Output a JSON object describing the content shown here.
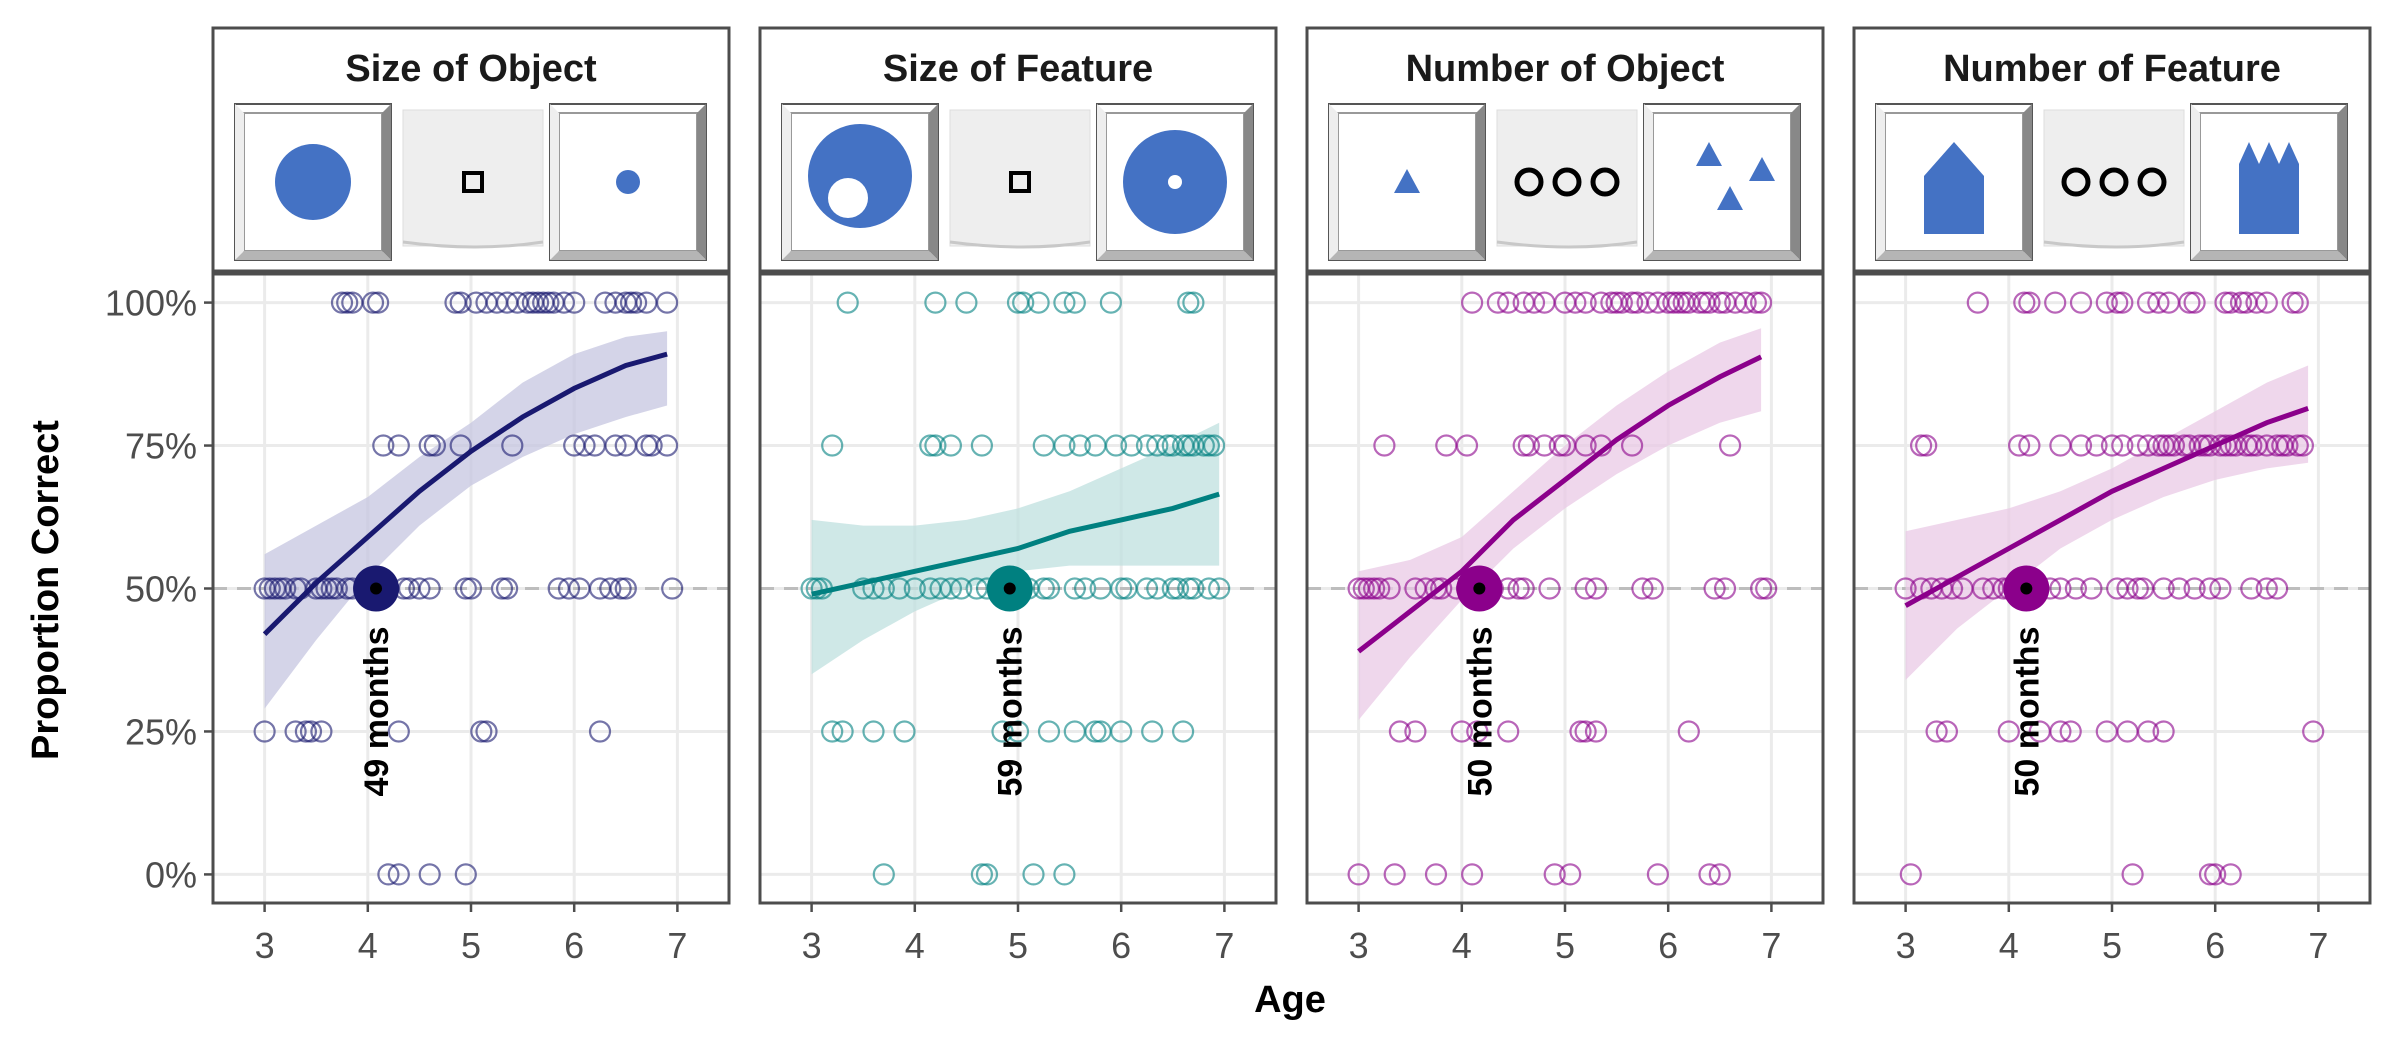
{
  "figure": {
    "xlabel": "Age",
    "ylabel": "Proportion Correct",
    "y_tick_labels": [
      "0%",
      "25%",
      "50%",
      "75%",
      "100%"
    ],
    "x_tick_labels": [
      "3",
      "4",
      "5",
      "6",
      "7"
    ]
  },
  "chart_data": [
    {
      "type": "scatter",
      "title": "Size of Object",
      "color": "#191970",
      "band_color": "#c5c6e0",
      "stimulus_icons": [
        "large-circle-icon",
        "small-square-icon",
        "small-circle-icon"
      ],
      "xlim": [
        2.5,
        7.5
      ],
      "ylim": [
        -0.05,
        1.05
      ],
      "x_ticks": [
        3,
        4,
        5,
        6,
        7
      ],
      "y_ticks": [
        0,
        0.25,
        0.5,
        0.75,
        1.0
      ],
      "chance_line": 0.5,
      "fit": {
        "x": [
          3.0,
          3.5,
          4.0,
          4.5,
          5.0,
          5.5,
          6.0,
          6.5,
          6.9
        ],
        "y": [
          0.42,
          0.51,
          0.59,
          0.67,
          0.74,
          0.8,
          0.85,
          0.89,
          0.91
        ],
        "lower": [
          0.29,
          0.41,
          0.52,
          0.61,
          0.68,
          0.73,
          0.77,
          0.8,
          0.82
        ],
        "upper": [
          0.56,
          0.61,
          0.66,
          0.73,
          0.79,
          0.86,
          0.91,
          0.94,
          0.95
        ]
      },
      "threshold": {
        "x": 4.08,
        "y": 0.5,
        "label": "49 months"
      },
      "points": {
        "x": [
          3.75,
          3.8,
          3.85,
          4.05,
          4.1,
          4.85,
          4.9,
          5.05,
          5.15,
          5.25,
          5.35,
          5.45,
          5.55,
          5.6,
          5.65,
          5.7,
          5.75,
          5.8,
          5.9,
          6.0,
          6.3,
          6.4,
          6.5,
          6.55,
          6.6,
          6.7,
          6.9,
          4.15,
          4.3,
          4.6,
          4.65,
          4.9,
          5.4,
          6.0,
          6.1,
          6.2,
          6.4,
          6.5,
          6.7,
          6.75,
          6.9,
          3.0,
          3.05,
          3.1,
          3.15,
          3.2,
          3.3,
          3.35,
          3.5,
          3.55,
          3.6,
          3.65,
          3.7,
          3.8,
          3.85,
          4.2,
          4.35,
          4.4,
          4.5,
          4.6,
          4.95,
          5.0,
          5.3,
          5.35,
          5.85,
          5.95,
          6.05,
          6.25,
          6.35,
          6.45,
          6.5,
          6.95,
          3.0,
          3.3,
          3.4,
          3.45,
          3.55,
          4.3,
          5.1,
          5.15,
          6.25,
          4.2,
          4.3,
          4.6,
          4.95
        ],
        "y": [
          1,
          1,
          1,
          1,
          1,
          1,
          1,
          1,
          1,
          1,
          1,
          1,
          1,
          1,
          1,
          1,
          1,
          1,
          1,
          1,
          1,
          1,
          1,
          1,
          1,
          1,
          1,
          0.75,
          0.75,
          0.75,
          0.75,
          0.75,
          0.75,
          0.75,
          0.75,
          0.75,
          0.75,
          0.75,
          0.75,
          0.75,
          0.75,
          0.5,
          0.5,
          0.5,
          0.5,
          0.5,
          0.5,
          0.5,
          0.5,
          0.5,
          0.5,
          0.5,
          0.5,
          0.5,
          0.5,
          0.5,
          0.5,
          0.5,
          0.5,
          0.5,
          0.5,
          0.5,
          0.5,
          0.5,
          0.5,
          0.5,
          0.5,
          0.5,
          0.5,
          0.5,
          0.5,
          0.5,
          0.25,
          0.25,
          0.25,
          0.25,
          0.25,
          0.25,
          0.25,
          0.25,
          0.25,
          0,
          0,
          0,
          0
        ]
      }
    },
    {
      "type": "scatter",
      "title": "Size of Feature",
      "color": "#008080",
      "band_color": "#bfe0df",
      "stimulus_icons": [
        "circle-with-hole-icon",
        "small-square-icon",
        "circle-with-dot-icon"
      ],
      "xlim": [
        2.5,
        7.5
      ],
      "ylim": [
        -0.05,
        1.05
      ],
      "x_ticks": [
        3,
        4,
        5,
        6,
        7
      ],
      "y_ticks": [
        0,
        0.25,
        0.5,
        0.75,
        1.0
      ],
      "chance_line": 0.5,
      "fit": {
        "x": [
          3.0,
          3.5,
          4.0,
          4.5,
          5.0,
          5.5,
          6.0,
          6.5,
          6.95
        ],
        "y": [
          0.49,
          0.51,
          0.53,
          0.55,
          0.57,
          0.6,
          0.62,
          0.64,
          0.665
        ],
        "lower": [
          0.35,
          0.41,
          0.46,
          0.5,
          0.53,
          0.54,
          0.54,
          0.54,
          0.54
        ],
        "upper": [
          0.62,
          0.61,
          0.61,
          0.62,
          0.64,
          0.67,
          0.71,
          0.75,
          0.79
        ]
      },
      "threshold": {
        "x": 4.92,
        "y": 0.5,
        "label": "59 months"
      },
      "points": {
        "x": [
          3.35,
          4.2,
          4.5,
          5.0,
          5.05,
          5.2,
          5.45,
          5.55,
          5.9,
          6.65,
          6.7,
          3.2,
          4.15,
          4.2,
          4.35,
          4.65,
          5.25,
          5.45,
          5.6,
          5.75,
          5.95,
          6.1,
          6.25,
          6.35,
          6.45,
          6.5,
          6.6,
          6.65,
          6.7,
          6.8,
          6.85,
          6.9,
          3.0,
          3.05,
          3.1,
          3.5,
          3.6,
          3.7,
          3.85,
          4.0,
          4.15,
          4.25,
          4.35,
          4.45,
          4.6,
          4.7,
          4.9,
          5.1,
          5.25,
          5.3,
          5.55,
          5.65,
          5.8,
          6.0,
          6.05,
          6.25,
          6.35,
          6.5,
          6.55,
          6.65,
          6.7,
          6.85,
          6.95,
          3.2,
          3.3,
          3.6,
          3.9,
          4.85,
          5.0,
          5.3,
          5.55,
          5.75,
          5.8,
          6.0,
          6.3,
          6.6,
          3.7,
          4.65,
          4.7,
          5.15,
          5.45
        ],
        "y": [
          1,
          1,
          1,
          1,
          1,
          1,
          1,
          1,
          1,
          1,
          1,
          0.75,
          0.75,
          0.75,
          0.75,
          0.75,
          0.75,
          0.75,
          0.75,
          0.75,
          0.75,
          0.75,
          0.75,
          0.75,
          0.75,
          0.75,
          0.75,
          0.75,
          0.75,
          0.75,
          0.75,
          0.75,
          0.5,
          0.5,
          0.5,
          0.5,
          0.5,
          0.5,
          0.5,
          0.5,
          0.5,
          0.5,
          0.5,
          0.5,
          0.5,
          0.5,
          0.5,
          0.5,
          0.5,
          0.5,
          0.5,
          0.5,
          0.5,
          0.5,
          0.5,
          0.5,
          0.5,
          0.5,
          0.5,
          0.5,
          0.5,
          0.5,
          0.5,
          0.25,
          0.25,
          0.25,
          0.25,
          0.25,
          0.25,
          0.25,
          0.25,
          0.25,
          0.25,
          0.25,
          0.25,
          0.25,
          0,
          0,
          0,
          0,
          0
        ]
      }
    },
    {
      "type": "scatter",
      "title": "Number of Object",
      "color": "#8b008b",
      "band_color": "#e9c9e6",
      "stimulus_icons": [
        "single-triangle-icon",
        "three-rings-icon",
        "three-triangles-icon"
      ],
      "xlim": [
        2.5,
        7.5
      ],
      "ylim": [
        -0.05,
        1.05
      ],
      "x_ticks": [
        3,
        4,
        5,
        6,
        7
      ],
      "y_ticks": [
        0,
        0.25,
        0.5,
        0.75,
        1.0
      ],
      "chance_line": 0.5,
      "fit": {
        "x": [
          3.0,
          3.5,
          4.0,
          4.5,
          5.0,
          5.5,
          6.0,
          6.5,
          6.9
        ],
        "y": [
          0.39,
          0.46,
          0.53,
          0.62,
          0.69,
          0.76,
          0.82,
          0.87,
          0.905
        ],
        "lower": [
          0.27,
          0.38,
          0.48,
          0.57,
          0.64,
          0.7,
          0.75,
          0.79,
          0.81
        ],
        "upper": [
          0.53,
          0.55,
          0.59,
          0.67,
          0.75,
          0.82,
          0.88,
          0.93,
          0.955
        ]
      },
      "threshold": {
        "x": 4.17,
        "y": 0.5,
        "label": "50 months"
      },
      "points": {
        "x": [
          4.1,
          4.35,
          4.45,
          4.6,
          4.7,
          4.8,
          5.0,
          5.1,
          5.2,
          5.35,
          5.45,
          5.5,
          5.55,
          5.65,
          5.7,
          5.8,
          5.9,
          6.0,
          6.05,
          6.1,
          6.15,
          6.2,
          6.3,
          6.35,
          6.4,
          6.5,
          6.55,
          6.65,
          6.75,
          6.85,
          6.9,
          3.25,
          3.85,
          4.05,
          4.6,
          4.65,
          4.8,
          4.95,
          5.0,
          5.2,
          5.35,
          5.65,
          6.6,
          3.0,
          3.05,
          3.1,
          3.15,
          3.2,
          3.3,
          3.55,
          3.65,
          3.75,
          3.8,
          3.95,
          4.05,
          4.15,
          4.3,
          4.45,
          4.55,
          4.6,
          4.85,
          5.2,
          5.3,
          5.75,
          5.85,
          6.45,
          6.55,
          6.9,
          6.95,
          3.4,
          3.55,
          4.0,
          4.15,
          4.45,
          5.15,
          5.2,
          5.3,
          6.2,
          3.0,
          3.35,
          3.75,
          4.1,
          4.9,
          5.05,
          5.9,
          6.4,
          6.5
        ],
        "y": [
          1,
          1,
          1,
          1,
          1,
          1,
          1,
          1,
          1,
          1,
          1,
          1,
          1,
          1,
          1,
          1,
          1,
          1,
          1,
          1,
          1,
          1,
          1,
          1,
          1,
          1,
          1,
          1,
          1,
          1,
          1,
          0.75,
          0.75,
          0.75,
          0.75,
          0.75,
          0.75,
          0.75,
          0.75,
          0.75,
          0.75,
          0.75,
          0.75,
          0.5,
          0.5,
          0.5,
          0.5,
          0.5,
          0.5,
          0.5,
          0.5,
          0.5,
          0.5,
          0.5,
          0.5,
          0.5,
          0.5,
          0.5,
          0.5,
          0.5,
          0.5,
          0.5,
          0.5,
          0.5,
          0.5,
          0.5,
          0.5,
          0.5,
          0.5,
          0.25,
          0.25,
          0.25,
          0.25,
          0.25,
          0.25,
          0.25,
          0.25,
          0.25,
          0,
          0,
          0,
          0,
          0,
          0,
          0,
          0,
          0
        ]
      }
    },
    {
      "type": "scatter",
      "title": "Number of Feature",
      "color": "#8b008b",
      "band_color": "#e9c9e6",
      "stimulus_icons": [
        "house-shape-icon",
        "three-rings-icon",
        "castle-shape-icon"
      ],
      "xlim": [
        2.5,
        7.5
      ],
      "ylim": [
        -0.05,
        1.05
      ],
      "x_ticks": [
        3,
        4,
        5,
        6,
        7
      ],
      "y_ticks": [
        0,
        0.25,
        0.5,
        0.75,
        1.0
      ],
      "chance_line": 0.5,
      "fit": {
        "x": [
          3.0,
          3.5,
          4.0,
          4.5,
          5.0,
          5.5,
          6.0,
          6.5,
          6.9
        ],
        "y": [
          0.47,
          0.52,
          0.57,
          0.62,
          0.67,
          0.71,
          0.75,
          0.79,
          0.815
        ],
        "lower": [
          0.34,
          0.43,
          0.5,
          0.57,
          0.62,
          0.66,
          0.69,
          0.71,
          0.72
        ],
        "upper": [
          0.6,
          0.62,
          0.64,
          0.67,
          0.71,
          0.76,
          0.81,
          0.86,
          0.89
        ]
      },
      "threshold": {
        "x": 4.17,
        "y": 0.5,
        "label": "50 months"
      },
      "points": {
        "x": [
          3.7,
          4.15,
          4.2,
          4.45,
          4.7,
          4.95,
          5.05,
          5.1,
          5.35,
          5.45,
          5.55,
          5.75,
          5.8,
          6.1,
          6.15,
          6.25,
          6.3,
          6.4,
          6.5,
          6.75,
          6.8,
          3.15,
          3.2,
          4.1,
          4.2,
          4.5,
          4.7,
          4.85,
          5.0,
          5.1,
          5.25,
          5.35,
          5.45,
          5.5,
          5.55,
          5.6,
          5.7,
          5.75,
          5.85,
          5.9,
          5.95,
          6.05,
          6.1,
          6.15,
          6.2,
          6.3,
          6.35,
          6.4,
          6.5,
          6.6,
          6.65,
          6.7,
          6.8,
          6.85,
          3.0,
          3.15,
          3.25,
          3.35,
          3.45,
          3.55,
          3.75,
          3.85,
          3.95,
          4.0,
          4.15,
          4.4,
          4.5,
          4.65,
          4.8,
          5.05,
          5.15,
          5.25,
          5.3,
          5.5,
          5.65,
          5.8,
          5.95,
          6.05,
          6.35,
          6.5,
          6.6,
          3.3,
          3.4,
          4.0,
          4.3,
          4.5,
          4.6,
          4.95,
          5.15,
          5.35,
          5.5,
          6.95,
          3.05,
          5.2,
          5.95,
          6.0,
          6.15
        ],
        "y": [
          1,
          1,
          1,
          1,
          1,
          1,
          1,
          1,
          1,
          1,
          1,
          1,
          1,
          1,
          1,
          1,
          1,
          1,
          1,
          1,
          1,
          0.75,
          0.75,
          0.75,
          0.75,
          0.75,
          0.75,
          0.75,
          0.75,
          0.75,
          0.75,
          0.75,
          0.75,
          0.75,
          0.75,
          0.75,
          0.75,
          0.75,
          0.75,
          0.75,
          0.75,
          0.75,
          0.75,
          0.75,
          0.75,
          0.75,
          0.75,
          0.75,
          0.75,
          0.75,
          0.75,
          0.75,
          0.75,
          0.75,
          0.5,
          0.5,
          0.5,
          0.5,
          0.5,
          0.5,
          0.5,
          0.5,
          0.5,
          0.5,
          0.5,
          0.5,
          0.5,
          0.5,
          0.5,
          0.5,
          0.5,
          0.5,
          0.5,
          0.5,
          0.5,
          0.5,
          0.5,
          0.5,
          0.5,
          0.5,
          0.5,
          0.25,
          0.25,
          0.25,
          0.25,
          0.25,
          0.25,
          0.25,
          0.25,
          0.25,
          0.25,
          0.25,
          0,
          0,
          0,
          0,
          0
        ]
      }
    }
  ]
}
